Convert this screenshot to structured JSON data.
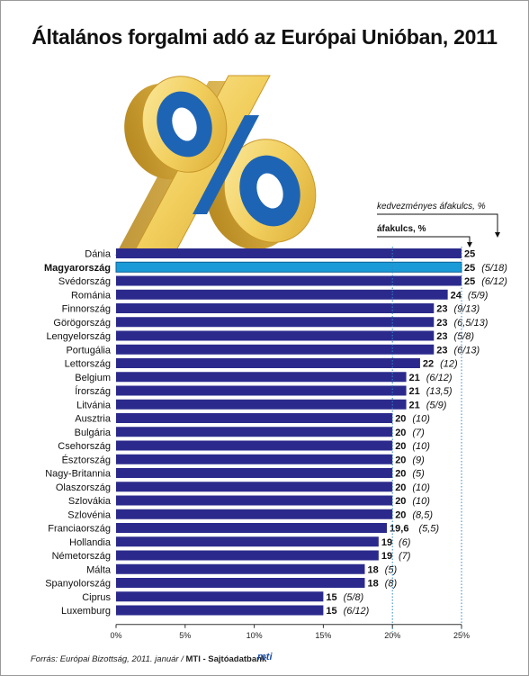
{
  "title": "Általános forgalmi adó az Európai Unióban, 2011",
  "legend": {
    "reduced": "kedvezményes áfakulcs, %",
    "standard": "áfakulcs, %"
  },
  "source": {
    "prefix": "Forrás: Európai Bizottság, 2011. január / ",
    "agency": "MTI - Sajtóadatbank",
    "logo": "mti"
  },
  "colors": {
    "bar": "#2b2a8c",
    "highlight_bar": "#1a9bd7",
    "guide": "#2c86c9"
  },
  "chart_data": {
    "type": "bar",
    "orientation": "horizontal",
    "title": "Általános forgalmi adó az Európai Unióban, 2011",
    "xlim": [
      0,
      25
    ],
    "x_ticks": [
      "0%",
      "5%",
      "10%",
      "15%",
      "20%",
      "25%"
    ],
    "highlight": "Magyarország",
    "categories": [
      "Dánia",
      "Magyarország",
      "Svédország",
      "Románia",
      "Finnország",
      "Görögország",
      "Lengyelország",
      "Portugália",
      "Lettország",
      "Belgium",
      "Írország",
      "Litvánia",
      "Ausztria",
      "Bulgária",
      "Csehország",
      "Észtország",
      "Nagy-Britannia",
      "Olaszország",
      "Szlovákia",
      "Szlovénia",
      "Franciaország",
      "Hollandia",
      "Németország",
      "Málta",
      "Spanyolország",
      "Ciprus",
      "Luxemburg"
    ],
    "values": [
      25,
      25,
      25,
      24,
      23,
      23,
      23,
      23,
      22,
      21,
      21,
      21,
      20,
      20,
      20,
      20,
      20,
      20,
      20,
      20,
      19.6,
      19,
      19,
      18,
      18,
      15,
      15
    ],
    "value_labels": [
      "25",
      "25",
      "25",
      "24",
      "23",
      "23",
      "23",
      "23",
      "22",
      "21",
      "21",
      "21",
      "20",
      "20",
      "20",
      "20",
      "20",
      "20",
      "20",
      "20",
      "19,6",
      "19",
      "19",
      "18",
      "18",
      "15",
      "15"
    ],
    "reduced_labels": [
      "",
      "(5/18)",
      "(6/12)",
      "(5/9)",
      "(9/13)",
      "(6,5/13)",
      "(5/8)",
      "(6/13)",
      "(12)",
      "(6/12)",
      "(13,5)",
      "(5/9)",
      "(10)",
      "(7)",
      "(10)",
      "(9)",
      "(5)",
      "(10)",
      "(10)",
      "(8,5)",
      "(5,5)",
      "(6)",
      "(7)",
      "(5)",
      "(8)",
      "(5/8)",
      "(6/12)"
    ]
  }
}
